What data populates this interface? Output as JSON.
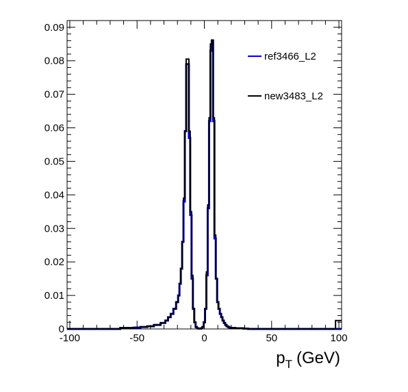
{
  "chart_data": {
    "type": "line",
    "xlabel": "p",
    "xlabel_subscript": "T",
    "xlabel_unit": "(GeV)",
    "xlim": [
      -102,
      102
    ],
    "ylim": [
      0,
      0.092
    ],
    "x_ticks": [
      -100,
      -50,
      0,
      50,
      100
    ],
    "x_tick_labels": [
      "-100",
      "-50",
      "0",
      "50",
      "100"
    ],
    "y_ticks": [
      0,
      0.01,
      0.02,
      0.03,
      0.04,
      0.05,
      0.06,
      0.07,
      0.08,
      0.09
    ],
    "y_tick_labels": [
      "0",
      "0.01",
      "0.02",
      "0.03",
      "0.04",
      "0.05",
      "0.06",
      "0.07",
      "0.08",
      "0.09"
    ],
    "legend_position": "top-right",
    "x": [
      -100,
      -95,
      -90,
      -85,
      -80,
      -75,
      -70,
      -65,
      -60,
      -55,
      -50,
      -45,
      -40,
      -35,
      -30,
      -28,
      -26,
      -24,
      -22,
      -20,
      -19,
      -18,
      -17,
      -16,
      -15,
      -14,
      -13,
      -12,
      -11,
      -10,
      -9,
      -8,
      -7,
      -6,
      -5,
      -4,
      -3,
      -2,
      -1,
      0,
      1,
      2,
      3,
      4,
      5,
      6,
      7,
      8,
      9,
      10,
      11,
      12,
      13,
      14,
      15,
      16,
      17,
      18,
      19,
      20,
      22,
      24,
      26,
      28,
      30,
      35,
      40,
      45,
      50,
      55,
      60,
      65,
      70,
      75,
      80,
      85,
      90,
      95,
      100
    ],
    "series": [
      {
        "name": "ref3466_L2",
        "color": "#0000cc",
        "values": [
          0,
          0,
          0,
          0,
          0,
          0,
          0,
          0,
          0.0003,
          0.0003,
          0.0004,
          0.0006,
          0.0008,
          0.0012,
          0.0018,
          0.0025,
          0.0035,
          0.0045,
          0.006,
          0.008,
          0.01,
          0.0135,
          0.018,
          0.026,
          0.038,
          0.059,
          0.079,
          0.079,
          0.057,
          0.034,
          0.015,
          0.006,
          0.002,
          0.0006,
          0.0002,
          0.0001,
          0.0001,
          0.0002,
          0.0006,
          0.002,
          0.006,
          0.016,
          0.036,
          0.062,
          0.083,
          0.086,
          0.062,
          0.027,
          0.015,
          0.008,
          0.006,
          0.0045,
          0.0035,
          0.0025,
          0.0018,
          0.0012,
          0.0008,
          0.0006,
          0.0004,
          0.0003,
          0.0003,
          0.0002,
          0.0002,
          0.0002,
          0.0001,
          0,
          0,
          0,
          0,
          0,
          0,
          0,
          0,
          0,
          0,
          0,
          0,
          0,
          0
        ]
      },
      {
        "name": "new3483_L2",
        "color": "#000000",
        "values": [
          0,
          0,
          0,
          0,
          0,
          0,
          0,
          0,
          0.0003,
          0.0003,
          0.0004,
          0.0006,
          0.0008,
          0.0012,
          0.0018,
          0.0025,
          0.0035,
          0.0045,
          0.006,
          0.008,
          0.01,
          0.0135,
          0.018,
          0.026,
          0.039,
          0.059,
          0.0805,
          0.0805,
          0.059,
          0.035,
          0.016,
          0.006,
          0.002,
          0.0006,
          0.0002,
          0.0001,
          0.0001,
          0.0002,
          0.0006,
          0.002,
          0.006,
          0.017,
          0.037,
          0.063,
          0.085,
          0.0862,
          0.063,
          0.028,
          0.015,
          0.008,
          0.006,
          0.0045,
          0.0035,
          0.0025,
          0.0018,
          0.0012,
          0.0008,
          0.0006,
          0.0004,
          0.0003,
          0.0003,
          0.0002,
          0.0002,
          0.0002,
          0.0001,
          0,
          0,
          0,
          0,
          0,
          0,
          0,
          0,
          0,
          0,
          0,
          0,
          0,
          0.0025
        ]
      }
    ]
  }
}
